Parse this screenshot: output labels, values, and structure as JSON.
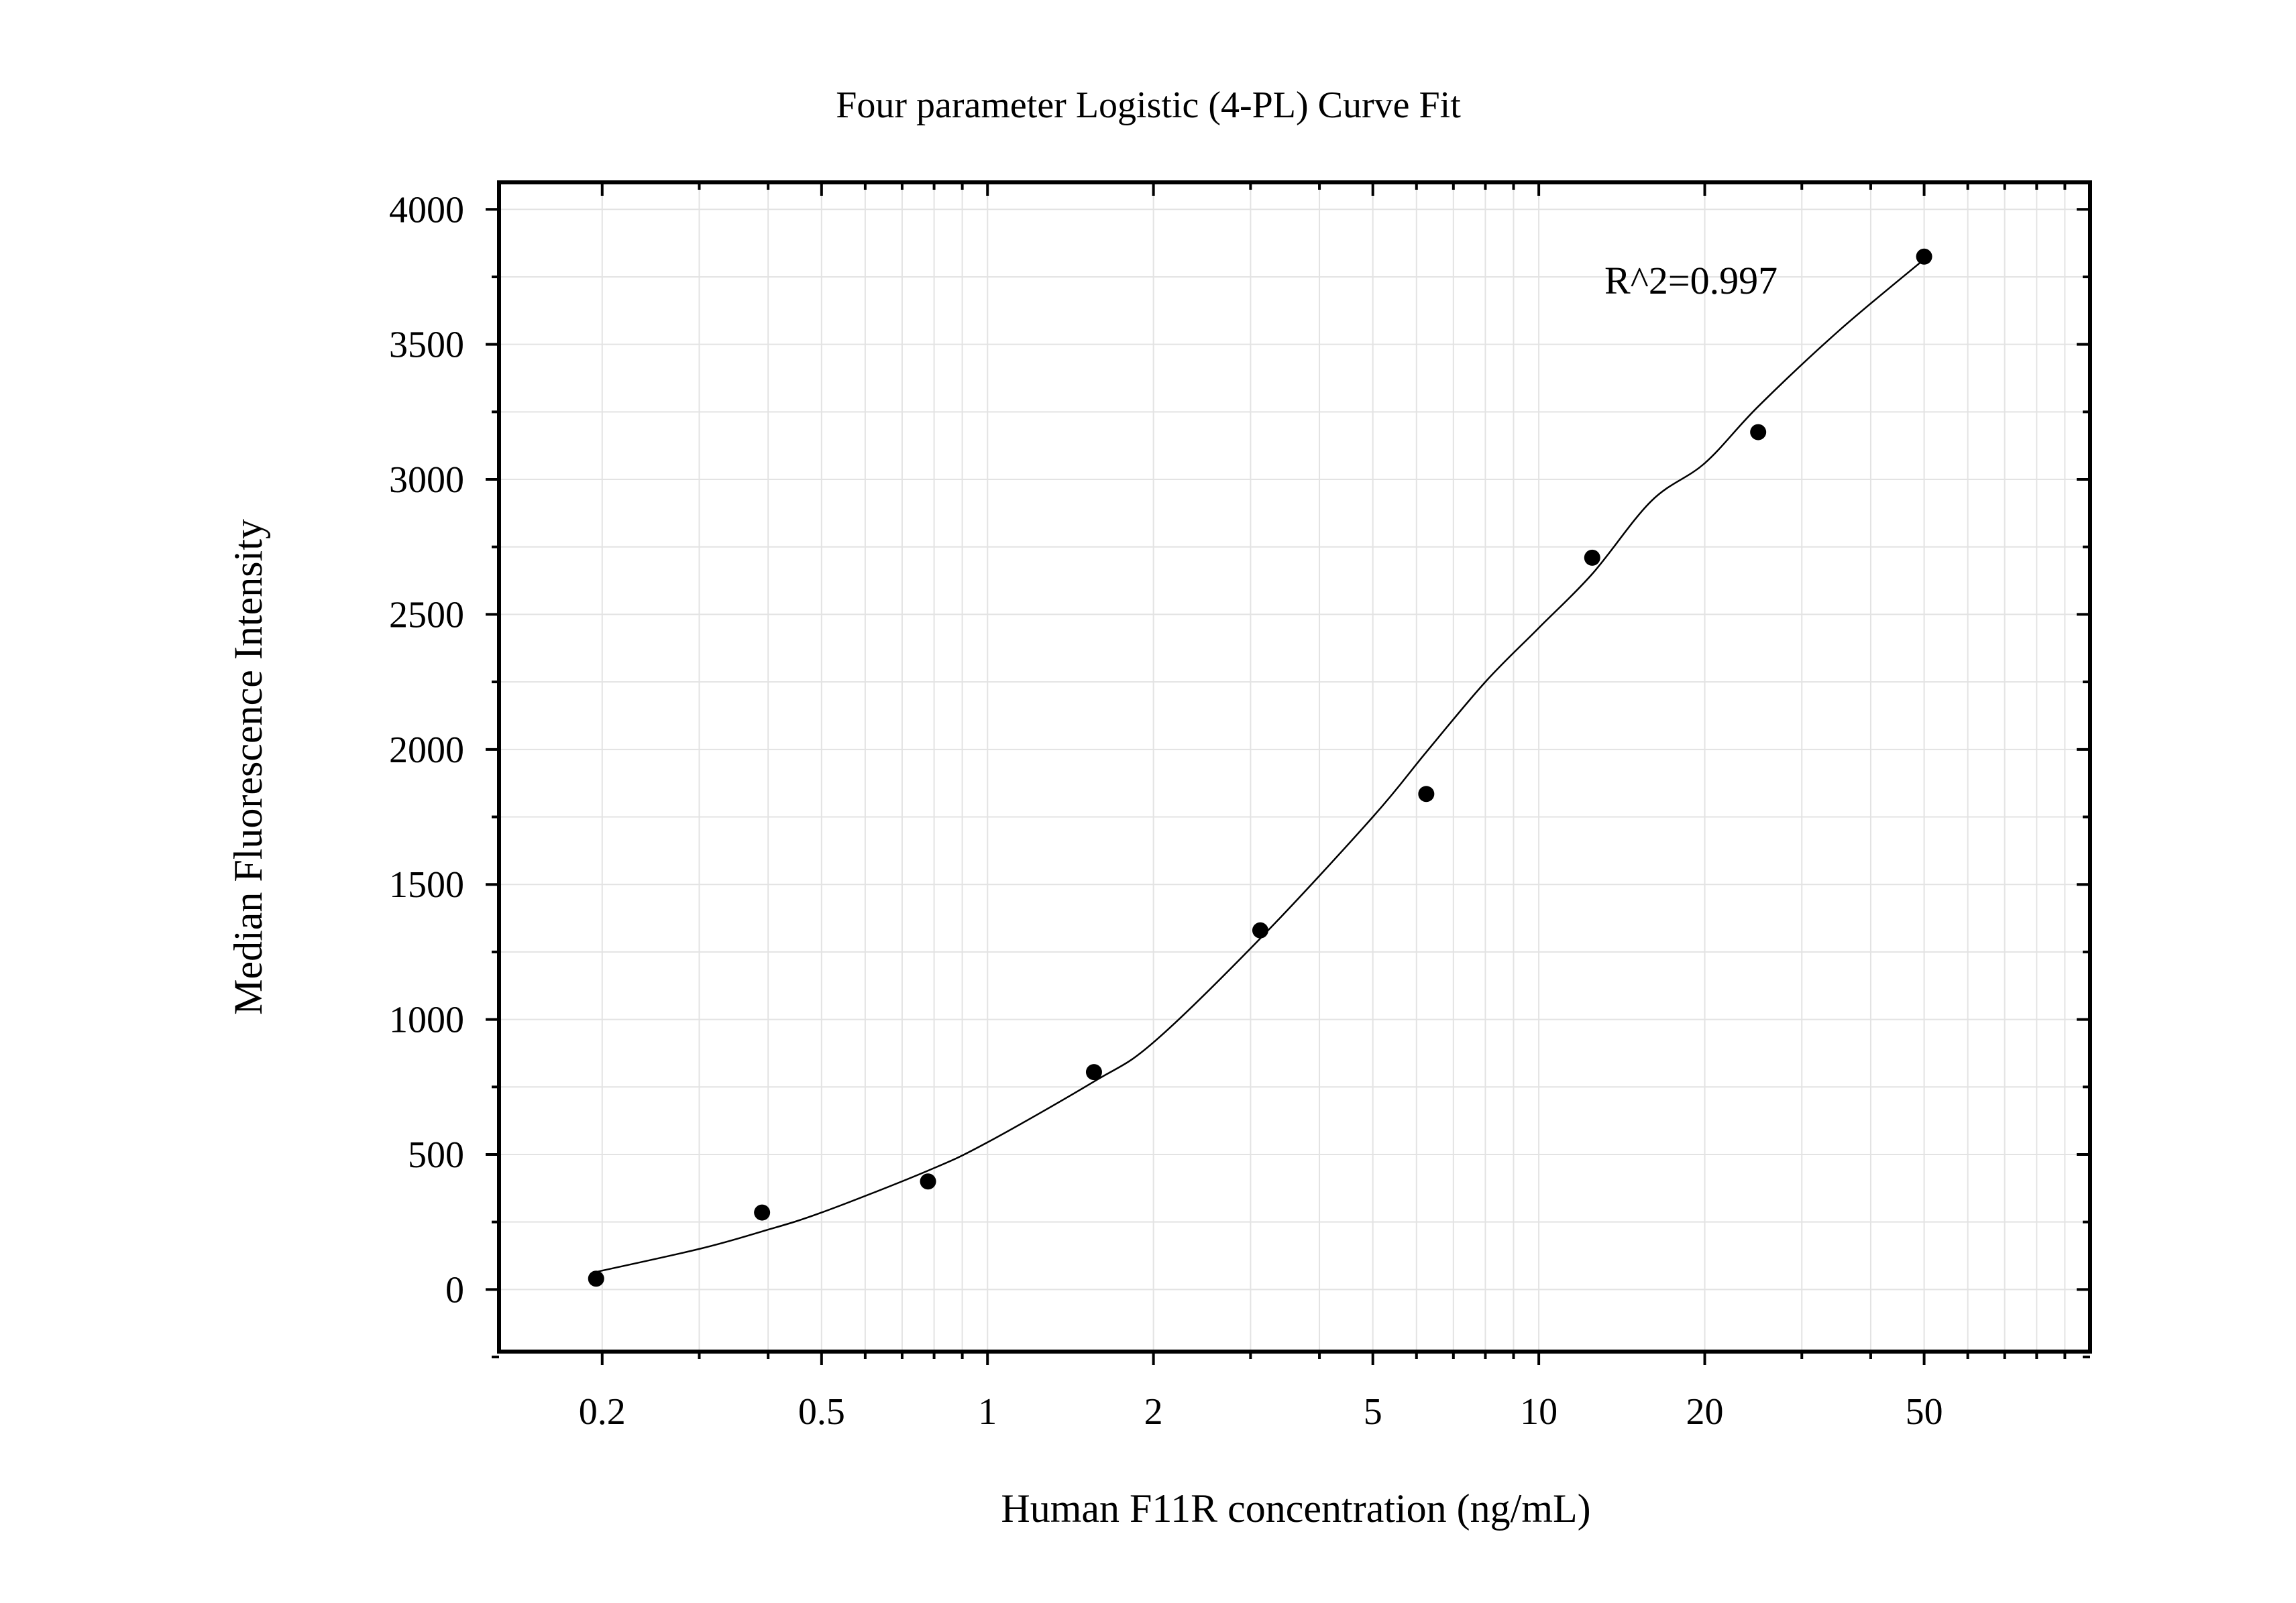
{
  "chart_data": {
    "type": "scatter",
    "title": "Four parameter Logistic (4-PL) Curve Fit",
    "xlabel": "Human F11R concentration (ng/mL)",
    "ylabel": "Median Fluorescence Intensity",
    "xscale": "log",
    "xlim": [
      0.13,
      100
    ],
    "ylim": [
      -230,
      4100
    ],
    "x_ticks": [
      0.2,
      0.5,
      1,
      2,
      5,
      10,
      20,
      50
    ],
    "x_tick_labels": [
      "0.2",
      "0.5",
      "1",
      "2",
      "5",
      "10",
      "20",
      "50"
    ],
    "y_ticks": [
      0,
      500,
      1000,
      1500,
      2000,
      2500,
      3000,
      3500,
      4000
    ],
    "y_tick_labels": [
      "0",
      "500",
      "1000",
      "1500",
      "2000",
      "2500",
      "3000",
      "3500",
      "4000"
    ],
    "grid": true,
    "annotation": "R^2=0.997",
    "series": [
      {
        "kind": "points",
        "x": [
          0.195,
          0.39,
          0.78,
          1.56,
          3.125,
          6.25,
          12.5,
          25,
          50
        ],
        "y": [
          40,
          285,
          400,
          805,
          1330,
          1835,
          2710,
          3175,
          3825
        ]
      },
      {
        "kind": "fit",
        "x": [
          0.195,
          0.3,
          0.39,
          0.5,
          0.78,
          1,
          1.56,
          2,
          3.125,
          5,
          6.25,
          8,
          10,
          12.5,
          16,
          20,
          25,
          35,
          50
        ],
        "y": [
          65,
          150,
          215,
          285,
          440,
          545,
          770,
          915,
          1300,
          1750,
          1990,
          2250,
          2450,
          2650,
          2920,
          3060,
          3270,
          3550,
          3815
        ]
      }
    ]
  }
}
